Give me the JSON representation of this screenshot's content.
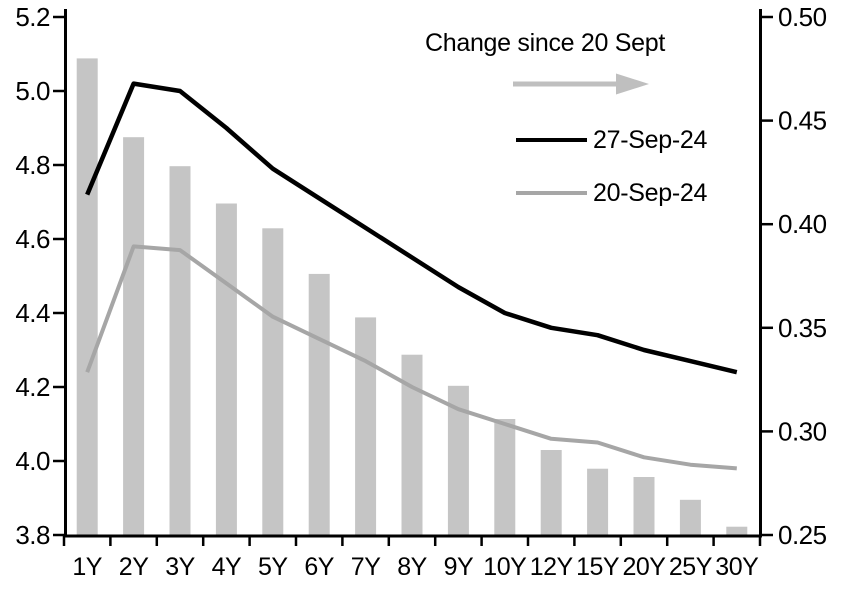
{
  "chart_data": {
    "type": "bar+line (dual axis)",
    "categories": [
      "1Y",
      "2Y",
      "3Y",
      "4Y",
      "5Y",
      "6Y",
      "7Y",
      "8Y",
      "9Y",
      "10Y",
      "12Y",
      "15Y",
      "20Y",
      "25Y",
      "30Y"
    ],
    "series": [
      {
        "name": "Change since 20 Sept",
        "type": "bar",
        "axis": "right",
        "color": "#C5C5C5",
        "values": [
          0.48,
          0.442,
          0.428,
          0.41,
          0.398,
          0.376,
          0.355,
          0.337,
          0.322,
          0.306,
          0.291,
          0.282,
          0.278,
          0.267,
          0.254
        ]
      },
      {
        "name": "27-Sep-24",
        "type": "line",
        "axis": "left",
        "color": "#000000",
        "stroke_width": 4.5,
        "values": [
          4.72,
          5.02,
          5.0,
          4.9,
          4.79,
          4.71,
          4.63,
          4.55,
          4.47,
          4.4,
          4.36,
          4.34,
          4.3,
          4.27,
          4.24
        ]
      },
      {
        "name": "20-Sep-24",
        "type": "line",
        "axis": "left",
        "color": "#A6A6A6",
        "stroke_width": 4,
        "values": [
          4.24,
          4.58,
          4.57,
          4.48,
          4.39,
          4.33,
          4.27,
          4.2,
          4.14,
          4.1,
          4.06,
          4.05,
          4.01,
          3.99,
          3.98
        ]
      }
    ],
    "left_axis": {
      "min": 3.8,
      "max": 5.2,
      "tick_labels": [
        "5.2",
        "5.0",
        "4.8",
        "4.6",
        "4.4",
        "4.2",
        "4.0",
        "3.8"
      ]
    },
    "right_axis": {
      "min": 0.25,
      "max": 0.5,
      "tick_labels": [
        "0.50",
        "0.45",
        "0.40",
        "0.35",
        "0.30",
        "0.25"
      ]
    },
    "grid": "off",
    "legend": {
      "position": "top-right-inside",
      "title": "Change since 20 Sept",
      "arrow_color": "#BFBFBF",
      "entries": [
        {
          "label": "27-Sep-24",
          "color": "#000000"
        },
        {
          "label": "20-Sep-24",
          "color": "#A6A6A6"
        }
      ]
    },
    "axis_color": "#000000"
  }
}
